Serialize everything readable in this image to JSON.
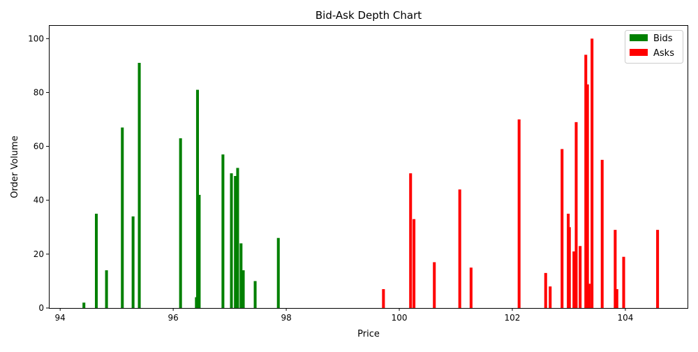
{
  "chart_data": {
    "type": "bar",
    "title": "Bid-Ask Depth Chart",
    "xlabel": "Price",
    "ylabel": "Order Volume",
    "xlim": [
      93.8,
      105.1
    ],
    "ylim": [
      0,
      105
    ],
    "xticks": [
      94,
      96,
      98,
      100,
      102,
      104
    ],
    "yticks": [
      0,
      20,
      40,
      60,
      80,
      100
    ],
    "grid": false,
    "legend_position": "top-right",
    "bar_width": 0.05,
    "series": [
      {
        "name": "Bids",
        "color": "#008000",
        "points": [
          {
            "x": 94.42,
            "y": 2
          },
          {
            "x": 94.64,
            "y": 35
          },
          {
            "x": 94.82,
            "y": 14
          },
          {
            "x": 95.1,
            "y": 67
          },
          {
            "x": 95.29,
            "y": 34
          },
          {
            "x": 95.4,
            "y": 91
          },
          {
            "x": 96.13,
            "y": 63
          },
          {
            "x": 96.41,
            "y": 4
          },
          {
            "x": 96.43,
            "y": 81
          },
          {
            "x": 96.46,
            "y": 42
          },
          {
            "x": 96.88,
            "y": 57
          },
          {
            "x": 97.03,
            "y": 50
          },
          {
            "x": 97.1,
            "y": 49
          },
          {
            "x": 97.14,
            "y": 52
          },
          {
            "x": 97.2,
            "y": 24
          },
          {
            "x": 97.24,
            "y": 14
          },
          {
            "x": 97.45,
            "y": 10
          },
          {
            "x": 97.86,
            "y": 26
          }
        ]
      },
      {
        "name": "Asks",
        "color": "#ff0000",
        "points": [
          {
            "x": 99.72,
            "y": 7
          },
          {
            "x": 100.2,
            "y": 50
          },
          {
            "x": 100.26,
            "y": 33
          },
          {
            "x": 100.62,
            "y": 17
          },
          {
            "x": 101.07,
            "y": 44
          },
          {
            "x": 101.27,
            "y": 15
          },
          {
            "x": 102.12,
            "y": 70
          },
          {
            "x": 102.59,
            "y": 13
          },
          {
            "x": 102.67,
            "y": 8
          },
          {
            "x": 102.88,
            "y": 59
          },
          {
            "x": 102.99,
            "y": 35
          },
          {
            "x": 103.01,
            "y": 30
          },
          {
            "x": 103.09,
            "y": 21
          },
          {
            "x": 103.13,
            "y": 69
          },
          {
            "x": 103.2,
            "y": 23
          },
          {
            "x": 103.3,
            "y": 94
          },
          {
            "x": 103.33,
            "y": 83
          },
          {
            "x": 103.36,
            "y": 9
          },
          {
            "x": 103.41,
            "y": 100
          },
          {
            "x": 103.59,
            "y": 55
          },
          {
            "x": 103.82,
            "y": 29
          },
          {
            "x": 103.85,
            "y": 7
          },
          {
            "x": 103.97,
            "y": 19
          },
          {
            "x": 104.57,
            "y": 29
          }
        ]
      }
    ]
  }
}
